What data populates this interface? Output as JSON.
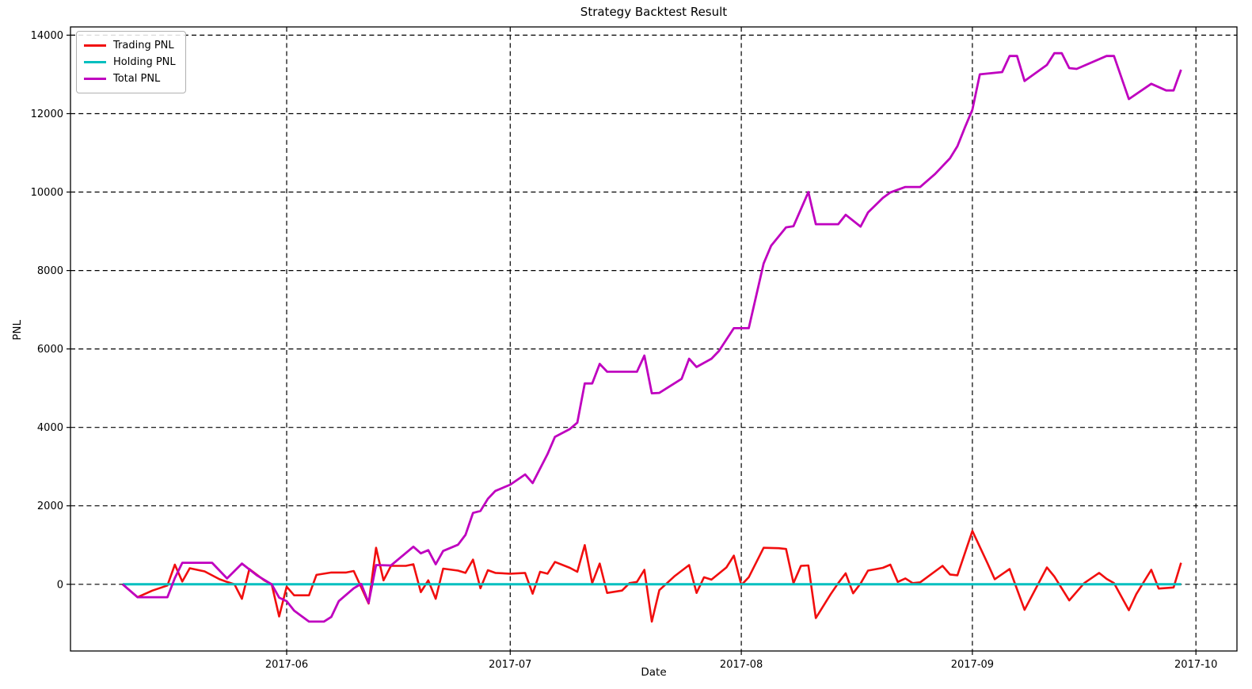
{
  "chart_data": {
    "type": "line",
    "title": "Strategy Backtest Result",
    "xlabel": "Date",
    "ylabel": "PNL",
    "grid": "dashed-black",
    "legend_position": "upper-left",
    "xlim": [
      "2017-05-03",
      "2017-10-06"
    ],
    "ylim": [
      -1700,
      14210
    ],
    "y_ticks": [
      0,
      2000,
      4000,
      6000,
      8000,
      10000,
      12000,
      14000
    ],
    "x_ticks": [
      {
        "date": "2017-06-01",
        "label": "2017-06"
      },
      {
        "date": "2017-07-01",
        "label": "2017-07"
      },
      {
        "date": "2017-08-01",
        "label": "2017-08"
      },
      {
        "date": "2017-09-01",
        "label": "2017-09"
      },
      {
        "date": "2017-10-01",
        "label": "2017-10"
      }
    ],
    "series": [
      {
        "name": "Trading PNL",
        "color": "#f10e0e",
        "points": [
          [
            "2017-05-10",
            0
          ],
          [
            "2017-05-12",
            -330
          ],
          [
            "2017-05-14",
            -160
          ],
          [
            "2017-05-16",
            -30
          ],
          [
            "2017-05-17",
            500
          ],
          [
            "2017-05-18",
            70
          ],
          [
            "2017-05-19",
            410
          ],
          [
            "2017-05-21",
            330
          ],
          [
            "2017-05-23",
            130
          ],
          [
            "2017-05-24",
            60
          ],
          [
            "2017-05-25",
            0
          ],
          [
            "2017-05-26",
            -370
          ],
          [
            "2017-05-27",
            390
          ],
          [
            "2017-05-29",
            100
          ],
          [
            "2017-05-30",
            0
          ],
          [
            "2017-05-31",
            -820
          ],
          [
            "2017-06-01",
            -60
          ],
          [
            "2017-06-02",
            -280
          ],
          [
            "2017-06-04",
            -280
          ],
          [
            "2017-06-05",
            240
          ],
          [
            "2017-06-07",
            300
          ],
          [
            "2017-06-09",
            300
          ],
          [
            "2017-06-10",
            340
          ],
          [
            "2017-06-12",
            -490
          ],
          [
            "2017-06-13",
            930
          ],
          [
            "2017-06-14",
            100
          ],
          [
            "2017-06-15",
            470
          ],
          [
            "2017-06-17",
            470
          ],
          [
            "2017-06-18",
            510
          ],
          [
            "2017-06-19",
            -200
          ],
          [
            "2017-06-20",
            100
          ],
          [
            "2017-06-21",
            -370
          ],
          [
            "2017-06-22",
            400
          ],
          [
            "2017-06-24",
            350
          ],
          [
            "2017-06-25",
            290
          ],
          [
            "2017-06-26",
            630
          ],
          [
            "2017-06-27",
            -100
          ],
          [
            "2017-06-28",
            360
          ],
          [
            "2017-06-29",
            290
          ],
          [
            "2017-07-01",
            270
          ],
          [
            "2017-07-03",
            290
          ],
          [
            "2017-07-04",
            -240
          ],
          [
            "2017-07-05",
            320
          ],
          [
            "2017-07-06",
            270
          ],
          [
            "2017-07-07",
            570
          ],
          [
            "2017-07-09",
            420
          ],
          [
            "2017-07-10",
            320
          ],
          [
            "2017-07-11",
            1000
          ],
          [
            "2017-07-12",
            30
          ],
          [
            "2017-07-13",
            530
          ],
          [
            "2017-07-14",
            -220
          ],
          [
            "2017-07-16",
            -160
          ],
          [
            "2017-07-17",
            30
          ],
          [
            "2017-07-18",
            60
          ],
          [
            "2017-07-19",
            370
          ],
          [
            "2017-07-20",
            -950
          ],
          [
            "2017-07-21",
            -150
          ],
          [
            "2017-07-23",
            200
          ],
          [
            "2017-07-25",
            490
          ],
          [
            "2017-07-26",
            -220
          ],
          [
            "2017-07-27",
            180
          ],
          [
            "2017-07-28",
            120
          ],
          [
            "2017-07-30",
            430
          ],
          [
            "2017-07-31",
            730
          ],
          [
            "2017-08-01",
            -20
          ],
          [
            "2017-08-02",
            180
          ],
          [
            "2017-08-04",
            930
          ],
          [
            "2017-08-06",
            920
          ],
          [
            "2017-08-07",
            900
          ],
          [
            "2017-08-08",
            30
          ],
          [
            "2017-08-09",
            470
          ],
          [
            "2017-08-10",
            480
          ],
          [
            "2017-08-11",
            -860
          ],
          [
            "2017-08-13",
            -250
          ],
          [
            "2017-08-14",
            30
          ],
          [
            "2017-08-15",
            280
          ],
          [
            "2017-08-16",
            -230
          ],
          [
            "2017-08-17",
            20
          ],
          [
            "2017-08-18",
            350
          ],
          [
            "2017-08-20",
            420
          ],
          [
            "2017-08-21",
            500
          ],
          [
            "2017-08-22",
            60
          ],
          [
            "2017-08-23",
            150
          ],
          [
            "2017-08-24",
            30
          ],
          [
            "2017-08-25",
            50
          ],
          [
            "2017-08-28",
            470
          ],
          [
            "2017-08-29",
            250
          ],
          [
            "2017-08-30",
            230
          ],
          [
            "2017-09-01",
            1360
          ],
          [
            "2017-09-03",
            550
          ],
          [
            "2017-09-04",
            130
          ],
          [
            "2017-09-06",
            390
          ],
          [
            "2017-09-08",
            -650
          ],
          [
            "2017-09-11",
            430
          ],
          [
            "2017-09-12",
            200
          ],
          [
            "2017-09-14",
            -410
          ],
          [
            "2017-09-16",
            30
          ],
          [
            "2017-09-18",
            290
          ],
          [
            "2017-09-19",
            140
          ],
          [
            "2017-09-20",
            30
          ],
          [
            "2017-09-22",
            -660
          ],
          [
            "2017-09-23",
            -250
          ],
          [
            "2017-09-25",
            370
          ],
          [
            "2017-09-26",
            -110
          ],
          [
            "2017-09-28",
            -80
          ],
          [
            "2017-09-29",
            550
          ]
        ]
      },
      {
        "name": "Holding PNL",
        "color": "#00bfbf",
        "points": [
          [
            "2017-05-10",
            0
          ],
          [
            "2017-09-29",
            0
          ]
        ]
      },
      {
        "name": "Total PNL",
        "color": "#bf00bf",
        "points": [
          [
            "2017-05-10",
            0
          ],
          [
            "2017-05-12",
            -330
          ],
          [
            "2017-05-16",
            -330
          ],
          [
            "2017-05-17",
            160
          ],
          [
            "2017-05-18",
            550
          ],
          [
            "2017-05-22",
            550
          ],
          [
            "2017-05-24",
            150
          ],
          [
            "2017-05-26",
            530
          ],
          [
            "2017-05-28",
            230
          ],
          [
            "2017-05-30",
            0
          ],
          [
            "2017-05-31",
            -340
          ],
          [
            "2017-06-01",
            -430
          ],
          [
            "2017-06-02",
            -670
          ],
          [
            "2017-06-04",
            -950
          ],
          [
            "2017-06-06",
            -950
          ],
          [
            "2017-06-07",
            -830
          ],
          [
            "2017-06-08",
            -430
          ],
          [
            "2017-06-10",
            -100
          ],
          [
            "2017-06-11",
            10
          ],
          [
            "2017-06-12",
            -470
          ],
          [
            "2017-06-13",
            490
          ],
          [
            "2017-06-15",
            480
          ],
          [
            "2017-06-18",
            960
          ],
          [
            "2017-06-19",
            790
          ],
          [
            "2017-06-20",
            870
          ],
          [
            "2017-06-21",
            510
          ],
          [
            "2017-06-22",
            850
          ],
          [
            "2017-06-24",
            1010
          ],
          [
            "2017-06-25",
            1260
          ],
          [
            "2017-06-26",
            1820
          ],
          [
            "2017-06-27",
            1870
          ],
          [
            "2017-06-28",
            2180
          ],
          [
            "2017-06-29",
            2380
          ],
          [
            "2017-07-01",
            2540
          ],
          [
            "2017-07-03",
            2800
          ],
          [
            "2017-07-04",
            2580
          ],
          [
            "2017-07-06",
            3320
          ],
          [
            "2017-07-07",
            3760
          ],
          [
            "2017-07-09",
            3960
          ],
          [
            "2017-07-10",
            4120
          ],
          [
            "2017-07-11",
            5120
          ],
          [
            "2017-07-12",
            5120
          ],
          [
            "2017-07-13",
            5620
          ],
          [
            "2017-07-14",
            5420
          ],
          [
            "2017-07-18",
            5420
          ],
          [
            "2017-07-19",
            5830
          ],
          [
            "2017-07-20",
            4870
          ],
          [
            "2017-07-21",
            4880
          ],
          [
            "2017-07-24",
            5240
          ],
          [
            "2017-07-25",
            5750
          ],
          [
            "2017-07-26",
            5540
          ],
          [
            "2017-07-28",
            5750
          ],
          [
            "2017-07-29",
            5950
          ],
          [
            "2017-07-31",
            6530
          ],
          [
            "2017-08-02",
            6530
          ],
          [
            "2017-08-04",
            8180
          ],
          [
            "2017-08-05",
            8630
          ],
          [
            "2017-08-07",
            9100
          ],
          [
            "2017-08-08",
            9130
          ],
          [
            "2017-08-10",
            10000
          ],
          [
            "2017-08-11",
            9180
          ],
          [
            "2017-08-14",
            9180
          ],
          [
            "2017-08-15",
            9420
          ],
          [
            "2017-08-17",
            9120
          ],
          [
            "2017-08-18",
            9480
          ],
          [
            "2017-08-20",
            9850
          ],
          [
            "2017-08-21",
            9990
          ],
          [
            "2017-08-23",
            10130
          ],
          [
            "2017-08-25",
            10130
          ],
          [
            "2017-08-27",
            10460
          ],
          [
            "2017-08-29",
            10860
          ],
          [
            "2017-08-30",
            11170
          ],
          [
            "2017-08-31",
            11650
          ],
          [
            "2017-09-01",
            12100
          ],
          [
            "2017-09-02",
            13000
          ],
          [
            "2017-09-05",
            13060
          ],
          [
            "2017-09-06",
            13470
          ],
          [
            "2017-09-07",
            13470
          ],
          [
            "2017-09-08",
            12830
          ],
          [
            "2017-09-11",
            13240
          ],
          [
            "2017-09-12",
            13540
          ],
          [
            "2017-09-13",
            13540
          ],
          [
            "2017-09-14",
            13160
          ],
          [
            "2017-09-15",
            13140
          ],
          [
            "2017-09-19",
            13470
          ],
          [
            "2017-09-20",
            13470
          ],
          [
            "2017-09-22",
            12370
          ],
          [
            "2017-09-25",
            12760
          ],
          [
            "2017-09-27",
            12590
          ],
          [
            "2017-09-28",
            12590
          ],
          [
            "2017-09-29",
            13120
          ]
        ]
      }
    ]
  }
}
